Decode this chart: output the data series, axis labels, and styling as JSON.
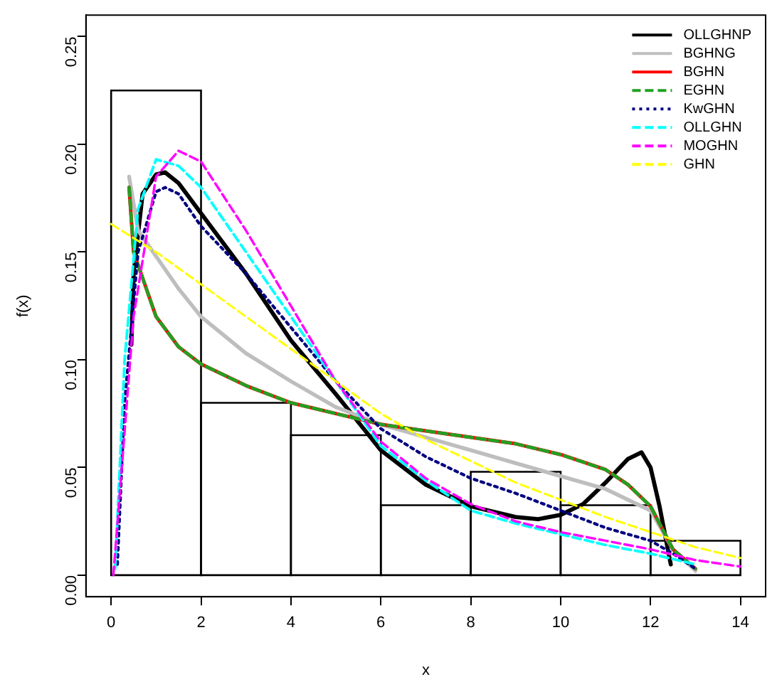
{
  "chart_data": {
    "type": "histogram",
    "xlabel": "x",
    "ylabel": "f(x)",
    "bins": [
      0,
      2,
      4,
      6,
      8,
      10,
      12,
      14
    ],
    "values": [
      0.225,
      0.08,
      0.065,
      0.0325,
      0.048,
      0.0325,
      0.016
    ],
    "xlim": [
      -0.56,
      14.56
    ],
    "xticks": [
      0,
      2,
      4,
      6,
      8,
      10,
      12,
      14
    ],
    "ylim": [
      -0.01,
      0.26
    ],
    "yticks": [
      {
        "value": 0,
        "label": "0.00"
      },
      0.05,
      {
        "value": 0.1,
        "label": "0.10"
      },
      0.15,
      {
        "value": 0.2,
        "label": "0.20"
      },
      0.25
    ],
    "grid": false,
    "legend": "top right",
    "series": [
      {
        "name": "OLLGHNP",
        "type": "line",
        "color": "#000000",
        "line_style": "solid",
        "x": [
          0.45,
          0.5,
          0.7,
          1.0,
          1.2,
          1.5,
          2,
          3,
          4,
          5,
          6,
          7,
          8,
          9,
          9.5,
          10,
          10.5,
          11,
          11.5,
          11.8,
          12,
          12.2,
          12.45
        ],
        "values": [
          0.107,
          0.14,
          0.177,
          0.186,
          0.187,
          0.182,
          0.168,
          0.14,
          0.109,
          0.084,
          0.058,
          0.042,
          0.032,
          0.027,
          0.026,
          0.028,
          0.033,
          0.043,
          0.054,
          0.057,
          0.05,
          0.032,
          0.005
        ]
      },
      {
        "name": "BGHNG",
        "type": "line",
        "color": "#bebebe",
        "line_style": "solid",
        "x": [
          0.4,
          0.6,
          1,
          1.5,
          2,
          3,
          4,
          5,
          6,
          7,
          8,
          9,
          10,
          11,
          12,
          12.5,
          13
        ],
        "values": [
          0.185,
          0.16,
          0.148,
          0.133,
          0.12,
          0.103,
          0.09,
          0.078,
          0.07,
          0.064,
          0.058,
          0.052,
          0.046,
          0.04,
          0.03,
          0.012,
          0.002
        ]
      },
      {
        "name": "BGHN",
        "type": "line",
        "color": "#ff0000",
        "line_style": "solid",
        "x": [
          0.4,
          0.5,
          1,
          1.5,
          2,
          3,
          4,
          5,
          6,
          7,
          8,
          9,
          10,
          11,
          11.5,
          12,
          12.5,
          13
        ],
        "values": [
          0.18,
          0.15,
          0.12,
          0.106,
          0.098,
          0.088,
          0.08,
          0.075,
          0.07,
          0.067,
          0.064,
          0.061,
          0.056,
          0.049,
          0.042,
          0.032,
          0.012,
          0.003
        ]
      },
      {
        "name": "EGHN",
        "type": "line",
        "color": "#22a022",
        "line_style": "dashed",
        "x": [
          0.4,
          0.5,
          1,
          1.5,
          2,
          3,
          4,
          5,
          6,
          7,
          8,
          9,
          10,
          11,
          11.5,
          12,
          12.5,
          13
        ],
        "values": [
          0.18,
          0.15,
          0.12,
          0.106,
          0.098,
          0.088,
          0.08,
          0.075,
          0.07,
          0.067,
          0.064,
          0.061,
          0.056,
          0.049,
          0.042,
          0.032,
          0.012,
          0.003
        ]
      },
      {
        "name": "KwGHN",
        "type": "line",
        "color": "#000080",
        "line_style": "dotted",
        "x": [
          0.14,
          0.3,
          0.6,
          1,
          1.2,
          1.5,
          2,
          3,
          4,
          5,
          6,
          7,
          8,
          9,
          10,
          11,
          12,
          12.5,
          13
        ],
        "values": [
          0.005,
          0.08,
          0.15,
          0.178,
          0.18,
          0.177,
          0.162,
          0.14,
          0.115,
          0.09,
          0.068,
          0.055,
          0.045,
          0.038,
          0.03,
          0.022,
          0.016,
          0.01,
          0.003
        ]
      },
      {
        "name": "OLLGHN",
        "type": "line",
        "color": "#00ffff",
        "line_style": "dashed",
        "x": [
          0.09,
          0.3,
          0.6,
          1,
          1.5,
          2,
          3,
          4,
          5,
          6,
          7,
          8,
          9,
          10,
          11,
          12,
          13
        ],
        "values": [
          0.003,
          0.1,
          0.17,
          0.193,
          0.19,
          0.18,
          0.15,
          0.12,
          0.09,
          0.06,
          0.044,
          0.03,
          0.024,
          0.019,
          0.014,
          0.01,
          0.005
        ]
      },
      {
        "name": "MOGHN",
        "type": "line",
        "color": "#ff00ff",
        "line_style": "dashed",
        "x": [
          0.05,
          0.5,
          1,
          1.5,
          2,
          3,
          4,
          5,
          6,
          7,
          8,
          9,
          10,
          11,
          12,
          13,
          14
        ],
        "values": [
          0,
          0.12,
          0.185,
          0.197,
          0.192,
          0.16,
          0.125,
          0.09,
          0.062,
          0.045,
          0.033,
          0.025,
          0.02,
          0.016,
          0.012,
          0.007,
          0.004
        ]
      },
      {
        "name": "GHN",
        "type": "line",
        "color": "#ffff00",
        "line_style": "dashed",
        "x": [
          0,
          1,
          2,
          3,
          4,
          5,
          6,
          7,
          8,
          9,
          10,
          11,
          12,
          13,
          14
        ],
        "values": [
          0.163,
          0.15,
          0.135,
          0.12,
          0.105,
          0.09,
          0.075,
          0.063,
          0.053,
          0.043,
          0.035,
          0.027,
          0.02,
          0.013,
          0.008
        ]
      }
    ]
  }
}
